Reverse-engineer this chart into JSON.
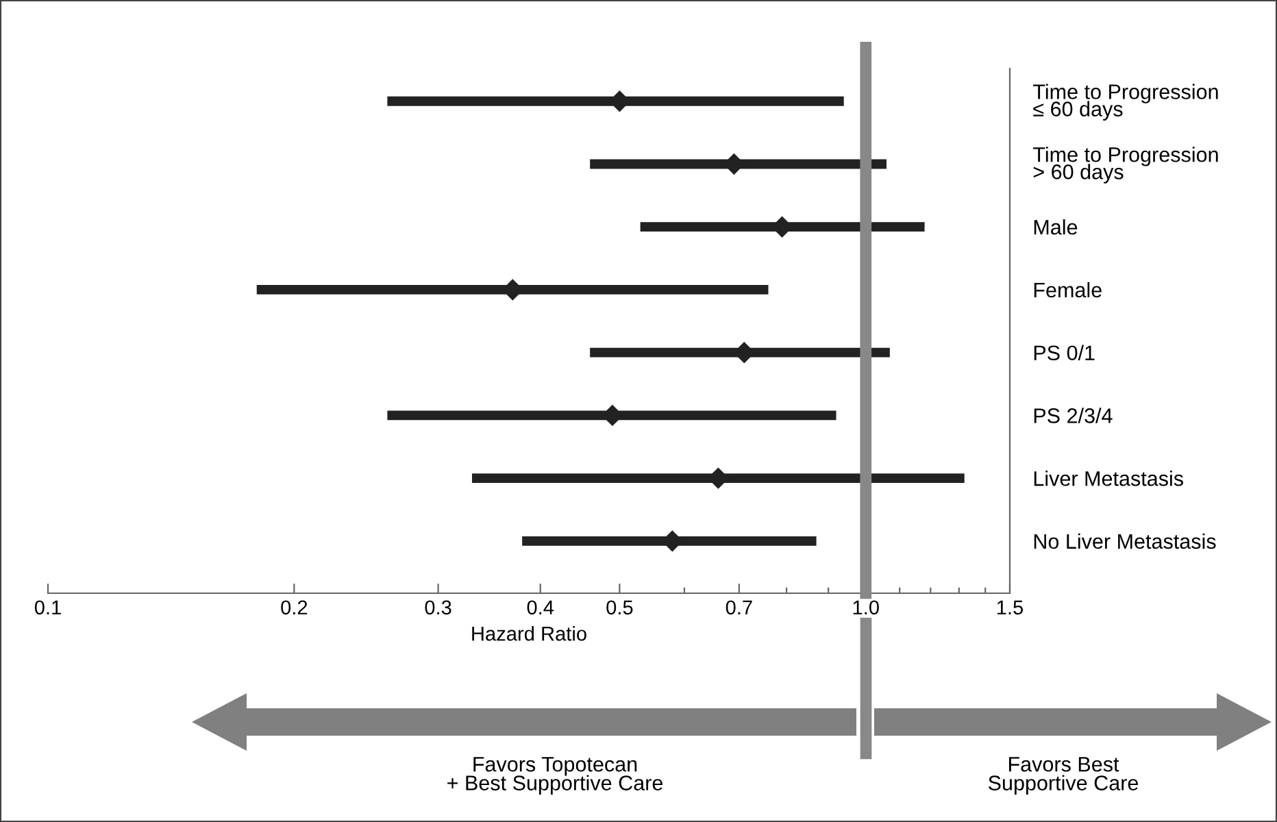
{
  "chart_data": {
    "type": "scatter",
    "orientation": "horizontal",
    "xlabel": "Hazard Ratio",
    "categories": [
      "Time to Progression\n≤ 60 days",
      "Time to Progression\n> 60 days",
      "Male",
      "Female",
      "PS 0/1",
      "PS 2/3/4",
      "Liver Metastasis",
      "No Liver Metastasis"
    ],
    "color": "#222222",
    "values": [
      0.5,
      0.69,
      0.79,
      0.37,
      0.71,
      0.49,
      0.66,
      0.58
    ],
    "errors": [
      [
        0.26,
        0.94
      ],
      [
        0.46,
        1.06
      ],
      [
        0.53,
        1.18
      ],
      [
        0.18,
        0.76
      ],
      [
        0.46,
        1.07
      ],
      [
        0.26,
        0.92
      ],
      [
        0.33,
        1.32
      ],
      [
        0.38,
        0.87
      ]
    ],
    "marker": "diamond",
    "log": "x",
    "xlim": [
      0.1,
      1.5
    ],
    "xticks": [
      0.1,
      0.2,
      0.3,
      0.4,
      0.5,
      {
        "value": 0.6,
        "label": null
      },
      0.7,
      {
        "value": 0.8,
        "label": null
      },
      {
        "value": 0.9,
        "label": null
      },
      {
        "value": 1.0,
        "label": "1.0"
      },
      {
        "value": 1.1,
        "label": null
      },
      {
        "value": 1.2,
        "label": null
      },
      {
        "value": 1.3,
        "label": null
      },
      {
        "value": 1.4,
        "label": null
      },
      1.5
    ],
    "ref_lines": [
      {
        "axis": "x",
        "value": 1.0,
        "color": "#888888"
      }
    ],
    "annotations": [
      "Favors Topotecan\n+ Best Supportive Care",
      "Favors Best\nSupportive Care"
    ],
    "grid": false,
    "legend": false
  }
}
